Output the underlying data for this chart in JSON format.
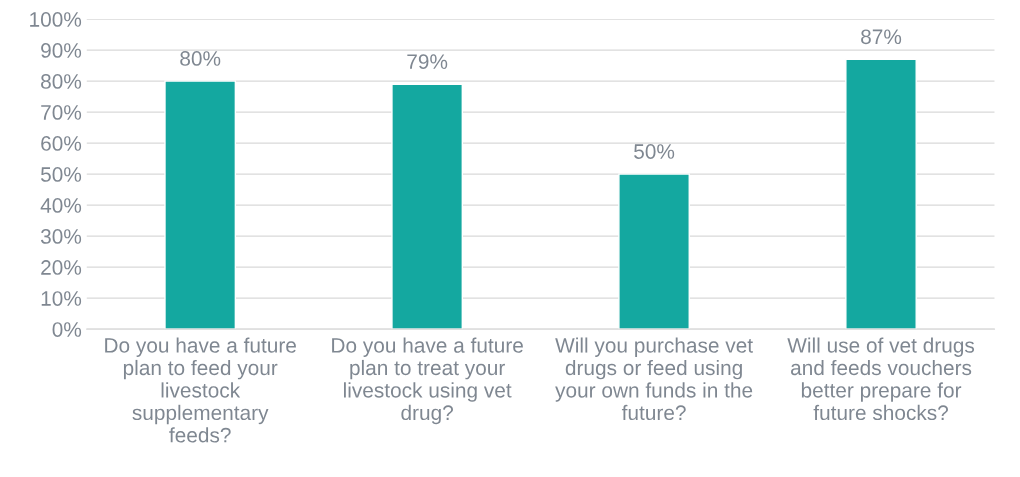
{
  "chart_data": {
    "type": "bar",
    "categories": [
      "Do you have a future\nplan to feed your\nlivestock\nsupplementary\nfeeds?",
      "Do you have a future\nplan to treat your\nlivestock using vet\ndrug?",
      "Will you purchase vet\ndrugs or feed using\nyour own funds in the\nfuture?",
      "Will use of vet drugs\nand feeds vouchers\nbetter prepare for\nfuture shocks?"
    ],
    "values": [
      80,
      79,
      50,
      87
    ],
    "value_labels": [
      "80%",
      "79%",
      "50%",
      "87%"
    ],
    "color": "#14a8a0",
    "ylim": [
      0,
      100
    ],
    "yticks": [
      {
        "value": 0,
        "label": "0%"
      },
      {
        "value": 10,
        "label": "10%"
      },
      {
        "value": 20,
        "label": "20%"
      },
      {
        "value": 30,
        "label": "30%"
      },
      {
        "value": 40,
        "label": "40%"
      },
      {
        "value": 50,
        "label": "50%"
      },
      {
        "value": 60,
        "label": "60%"
      },
      {
        "value": 70,
        "label": "70%"
      },
      {
        "value": 80,
        "label": "80%"
      },
      {
        "value": 90,
        "label": "90%"
      },
      {
        "value": 100,
        "label": "100%"
      }
    ],
    "grid": "y"
  }
}
